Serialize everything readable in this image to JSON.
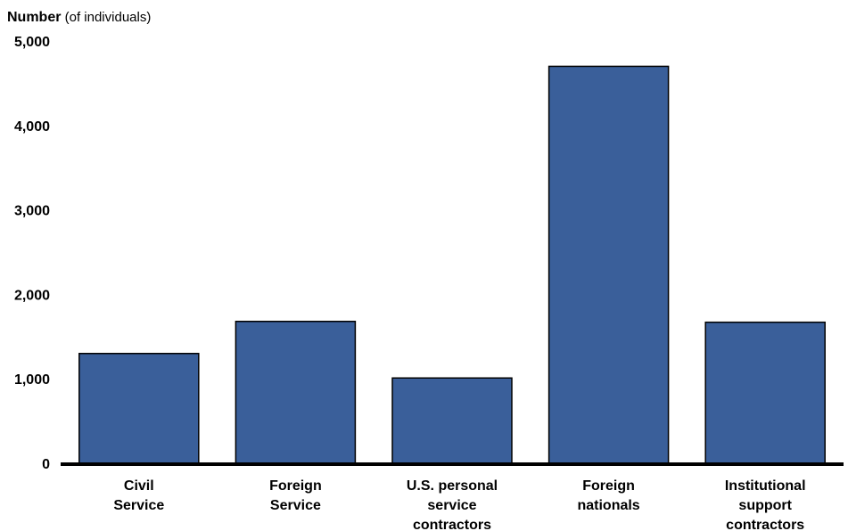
{
  "chart_data": {
    "type": "bar",
    "title_bold": "Number",
    "title_rest": " (of individuals)",
    "xlabel": "",
    "ylabel": "",
    "ylim": [
      0,
      5000
    ],
    "yticks": [
      0,
      1000,
      2000,
      3000,
      4000,
      5000
    ],
    "ytick_labels": [
      "0",
      "1,000",
      "2,000",
      "3,000",
      "4,000",
      "5,000"
    ],
    "grid": false,
    "bar_color": "#3a5f9a",
    "categories": [
      [
        "Civil",
        "Service"
      ],
      [
        "Foreign",
        "Service"
      ],
      [
        "U.S. personal",
        "service",
        "contractors"
      ],
      [
        "Foreign",
        "nationals"
      ],
      [
        "Institutional",
        "support",
        "contractors"
      ]
    ],
    "values": [
      1300,
      1680,
      1010,
      4700,
      1670
    ]
  }
}
